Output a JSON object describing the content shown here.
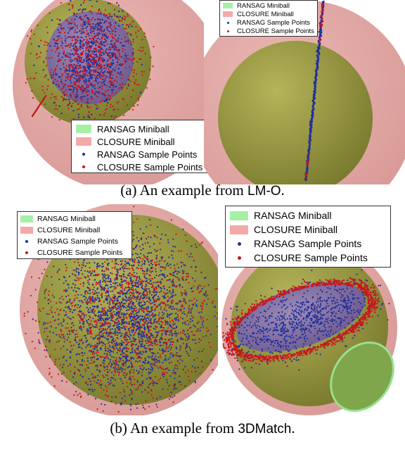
{
  "colors": {
    "ransag_miniball": "#a6f0a6",
    "closure_miniball": "#f4a9a9",
    "ransag_points": "#1f2f9c",
    "closure_points": "#c8161b",
    "outer_sphere": "#d99a97",
    "inner_sphere": "#7a7a2e"
  },
  "legend": {
    "ransag_miniball": "RANSAG Miniball",
    "closure_miniball": "CLOSURE Miniball",
    "ransag_points": "RANSAG Sample Points",
    "closure_points": "CLOSURE Sample Points"
  },
  "captions": {
    "a_prefix": "(a) An example from ",
    "a_dataset": "LM-O",
    "a_suffix": ".",
    "b_prefix": "(b) An example from ",
    "b_dataset": "3DMatch",
    "b_suffix": "."
  }
}
